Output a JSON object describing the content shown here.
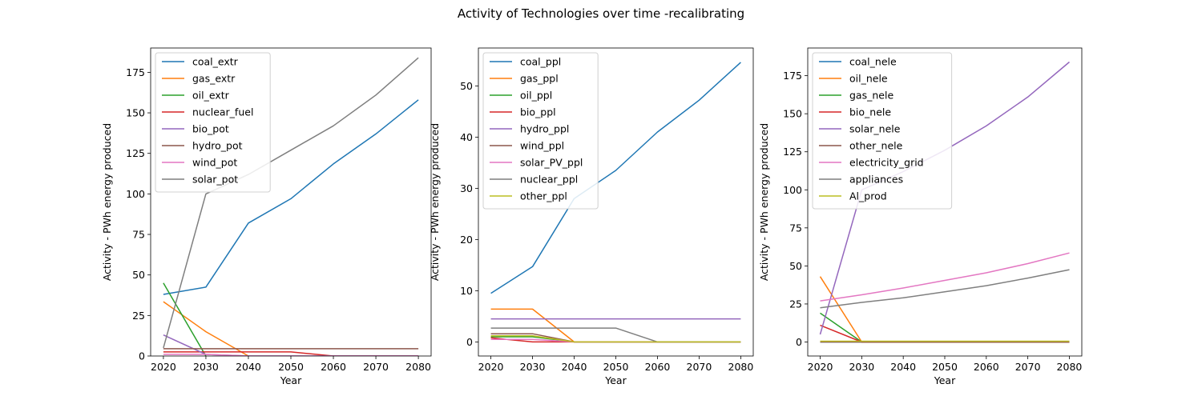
{
  "figure": {
    "title": "Activity of Technologies over time -recalibrating"
  },
  "colors": [
    "#1f77b4",
    "#ff7f0e",
    "#2ca02c",
    "#d62728",
    "#9467bd",
    "#8c564b",
    "#e377c2",
    "#7f7f7f",
    "#bcbd22"
  ],
  "chart_data": [
    {
      "type": "line",
      "xlabel": "Year",
      "ylabel": "Activity - PWh energy produced",
      "xlim": [
        2020,
        2080
      ],
      "ylim": [
        0,
        190
      ],
      "xticks": [
        2020,
        2030,
        2040,
        2050,
        2060,
        2070,
        2080
      ],
      "yticks": [
        0,
        25,
        50,
        75,
        100,
        125,
        150,
        175
      ],
      "legend": "upper-left",
      "grid": false,
      "series": [
        {
          "name": "coal_extr",
          "x": [
            2020,
            2030,
            2040,
            2050,
            2060,
            2070,
            2080
          ],
          "y": [
            38,
            42.5,
            82,
            97,
            118.5,
            137,
            158
          ]
        },
        {
          "name": "gas_extr",
          "x": [
            2020,
            2030,
            2040
          ],
          "y": [
            33.5,
            15,
            0
          ]
        },
        {
          "name": "oil_extr",
          "x": [
            2020,
            2030
          ],
          "y": [
            45,
            0
          ]
        },
        {
          "name": "nuclear_fuel",
          "x": [
            2020,
            2030,
            2040,
            2050,
            2060,
            2070,
            2080
          ],
          "y": [
            2.5,
            2.5,
            2.5,
            2.5,
            0,
            0,
            0
          ]
        },
        {
          "name": "bio_pot",
          "x": [
            2020,
            2030,
            2040,
            2050,
            2060,
            2070,
            2080
          ],
          "y": [
            13,
            1,
            0,
            0,
            0,
            0,
            0
          ]
        },
        {
          "name": "hydro_pot",
          "x": [
            2020,
            2030,
            2040,
            2050,
            2060,
            2070,
            2080
          ],
          "y": [
            4.5,
            4.5,
            4.5,
            4.5,
            4.5,
            4.5,
            4.5
          ]
        },
        {
          "name": "wind_pot",
          "x": [
            2020,
            2030,
            2040,
            2050,
            2060,
            2070,
            2080
          ],
          "y": [
            1,
            1,
            0,
            0,
            0,
            0,
            0
          ]
        },
        {
          "name": "solar_pot",
          "x": [
            2020,
            2030,
            2040,
            2050,
            2060,
            2070,
            2080
          ],
          "y": [
            5,
            100,
            112,
            127,
            142,
            161,
            184
          ]
        }
      ]
    },
    {
      "type": "line",
      "xlabel": "Year",
      "ylabel": "Activity - PWh energy produced",
      "xlim": [
        2020,
        2080
      ],
      "ylim": [
        -2.75,
        57.4
      ],
      "xticks": [
        2020,
        2030,
        2040,
        2050,
        2060,
        2070,
        2080
      ],
      "yticks": [
        0,
        10,
        20,
        30,
        40,
        50
      ],
      "legend": "upper-left",
      "grid": false,
      "series": [
        {
          "name": "coal_ppl",
          "x": [
            2020,
            2030,
            2040,
            2050,
            2060,
            2070,
            2080
          ],
          "y": [
            9.5,
            14.7,
            28,
            33.5,
            41,
            47.2,
            54.6
          ]
        },
        {
          "name": "gas_ppl",
          "x": [
            2020,
            2030,
            2040,
            2050,
            2060,
            2070,
            2080
          ],
          "y": [
            6.4,
            6.4,
            0,
            0,
            0,
            0,
            0
          ]
        },
        {
          "name": "oil_ppl",
          "x": [
            2020,
            2030,
            2040,
            2050,
            2060,
            2070,
            2080
          ],
          "y": [
            1,
            1,
            0,
            0,
            0,
            0,
            0
          ]
        },
        {
          "name": "bio_ppl",
          "x": [
            2020,
            2030,
            2040,
            2050,
            2060,
            2070,
            2080
          ],
          "y": [
            0.8,
            0,
            0,
            0,
            0,
            0,
            0
          ]
        },
        {
          "name": "hydro_ppl",
          "x": [
            2020,
            2030,
            2040,
            2050,
            2060,
            2070,
            2080
          ],
          "y": [
            4.5,
            4.5,
            4.5,
            4.5,
            4.5,
            4.5,
            4.5
          ]
        },
        {
          "name": "wind_ppl",
          "x": [
            2020,
            2030,
            2040,
            2050,
            2060,
            2070,
            2080
          ],
          "y": [
            1.6,
            1.6,
            0,
            0,
            0,
            0,
            0
          ]
        },
        {
          "name": "solar_PV_ppl",
          "x": [
            2020,
            2030,
            2040,
            2050,
            2060,
            2070,
            2080
          ],
          "y": [
            0.5,
            0.5,
            0,
            0,
            0,
            0,
            0
          ]
        },
        {
          "name": "nuclear_ppl",
          "x": [
            2020,
            2030,
            2040,
            2050,
            2060,
            2070,
            2080
          ],
          "y": [
            2.7,
            2.7,
            2.7,
            2.7,
            0,
            0,
            0
          ]
        },
        {
          "name": "other_ppl",
          "x": [
            2020,
            2030,
            2040,
            2050,
            2060,
            2070,
            2080
          ],
          "y": [
            1.2,
            1.2,
            0,
            0,
            0,
            0,
            0
          ]
        }
      ]
    },
    {
      "type": "line",
      "xlabel": "Year",
      "ylabel": "Activity - PWh energy produced",
      "xlim": [
        2020,
        2080
      ],
      "ylim": [
        -9.2,
        193.2
      ],
      "xticks": [
        2020,
        2030,
        2040,
        2050,
        2060,
        2070,
        2080
      ],
      "yticks": [
        0,
        25,
        50,
        75,
        100,
        125,
        150,
        175
      ],
      "legend": "upper-left",
      "grid": false,
      "series": [
        {
          "name": "coal_nele",
          "x": [
            2020,
            2030,
            2040,
            2050,
            2060,
            2070,
            2080
          ],
          "y": [
            0,
            0,
            0,
            0,
            0,
            0,
            0
          ]
        },
        {
          "name": "oil_nele",
          "x": [
            2020,
            2030,
            2040,
            2050,
            2060,
            2070,
            2080
          ],
          "y": [
            43,
            0,
            0,
            0,
            0,
            0,
            0
          ]
        },
        {
          "name": "gas_nele",
          "x": [
            2020,
            2030,
            2040,
            2050,
            2060,
            2070,
            2080
          ],
          "y": [
            19,
            0,
            0,
            0,
            0,
            0,
            0
          ]
        },
        {
          "name": "bio_nele",
          "x": [
            2020,
            2030,
            2040,
            2050,
            2060,
            2070,
            2080
          ],
          "y": [
            11,
            0,
            0,
            0,
            0,
            0,
            0
          ]
        },
        {
          "name": "solar_nele",
          "x": [
            2020,
            2030,
            2040,
            2050,
            2060,
            2070,
            2080
          ],
          "y": [
            5,
            100,
            112,
            126,
            142,
            161,
            184
          ]
        },
        {
          "name": "other_nele",
          "x": [
            2020,
            2030,
            2040,
            2050,
            2060,
            2070,
            2080
          ],
          "y": [
            0,
            0,
            0,
            0,
            0,
            0,
            0
          ]
        },
        {
          "name": "electricity_grid",
          "x": [
            2020,
            2030,
            2040,
            2050,
            2060,
            2070,
            2080
          ],
          "y": [
            27,
            31,
            35.5,
            40.5,
            45.5,
            51.5,
            58.5
          ]
        },
        {
          "name": "appliances",
          "x": [
            2020,
            2030,
            2040,
            2050,
            2060,
            2070,
            2080
          ],
          "y": [
            22.5,
            26,
            29,
            33,
            37,
            42,
            47.5
          ]
        },
        {
          "name": "Al_prod",
          "x": [
            2020,
            2030,
            2040,
            2050,
            2060,
            2070,
            2080
          ],
          "y": [
            0.5,
            0.5,
            0.5,
            0.5,
            0.5,
            0.5,
            0.5
          ]
        }
      ]
    }
  ]
}
